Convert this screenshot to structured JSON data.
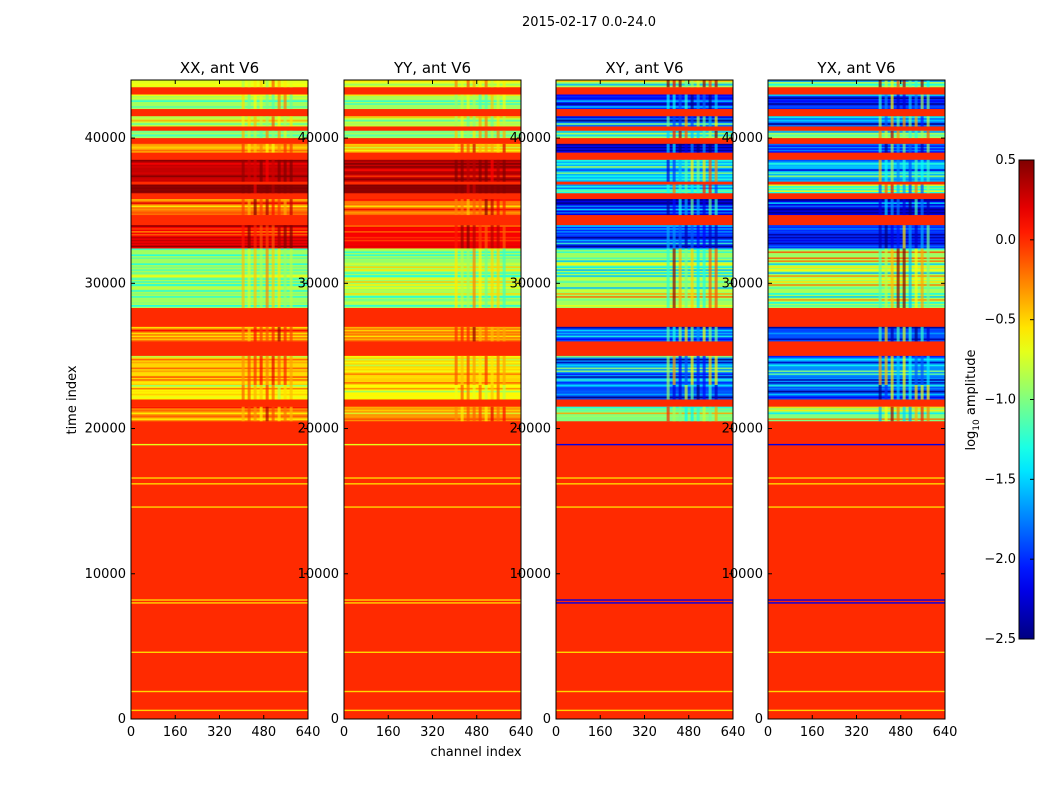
{
  "figure": {
    "suptitle": "2015-02-17 0.0-24.0"
  },
  "chart_data": {
    "type": "heatmap",
    "suptitle": "2015-02-17 0.0-24.0",
    "xlabel": "channel index",
    "ylabel": "time index",
    "xlim": [
      0,
      640
    ],
    "ylim": [
      0,
      44000
    ],
    "xticks": [
      0,
      160,
      320,
      480,
      640
    ],
    "yticks": [
      0,
      10000,
      20000,
      30000,
      40000
    ],
    "colorbar": {
      "label": "log10 amplitude",
      "label_base": "log",
      "label_sub": "10",
      "label_rest": " amplitude",
      "colormap": "jet",
      "range": [
        -2.5,
        0.5
      ],
      "ticks": [
        0.5,
        0.0,
        -0.5,
        -1.0,
        -1.5,
        -2.0,
        -2.5
      ],
      "tick_labels": [
        "0.5",
        "0.0",
        "−0.5",
        "−1.0",
        "−1.5",
        "−2.0",
        "−2.5"
      ]
    },
    "panels": [
      {
        "title": "XX, ant V6",
        "mode": "auto",
        "base": 0.0,
        "bands": [
          {
            "t": [
              43500,
              44000
            ],
            "v": -0.7
          },
          {
            "t": [
              42000,
              43000
            ],
            "v": -0.9
          },
          {
            "t": [
              40800,
              41500
            ],
            "v": -0.8
          },
          {
            "t": [
              40000,
              40500
            ],
            "v": -0.9
          },
          {
            "t": [
              39000,
              39600
            ],
            "v": -0.4
          },
          {
            "t": [
              37000,
              38500
            ],
            "v": 0.3
          },
          {
            "t": [
              36200,
              36800
            ],
            "v": 0.45
          },
          {
            "t": [
              34700,
              35800
            ],
            "v": -0.2
          },
          {
            "t": [
              32400,
              34000
            ],
            "v": 0.15
          },
          {
            "t": [
              28300,
              32400
            ],
            "v": -0.9
          },
          {
            "t": [
              26000,
              27000
            ],
            "v": -0.2
          },
          {
            "t": [
              23000,
              25000
            ],
            "v": -0.5
          },
          {
            "t": [
              22000,
              23000
            ],
            "v": -0.6
          },
          {
            "t": [
              20500,
              21500
            ],
            "v": -0.3
          }
        ],
        "lines": [
          {
            "t": 18900,
            "v": -0.7
          },
          {
            "t": 16600,
            "v": -0.5
          },
          {
            "t": 16200,
            "v": -0.5
          },
          {
            "t": 14600,
            "v": -0.5
          },
          {
            "t": 8200,
            "v": -0.5
          },
          {
            "t": 8000,
            "v": -0.5
          },
          {
            "t": 4600,
            "v": -0.5
          },
          {
            "t": 1900,
            "v": -0.5
          },
          {
            "t": 600,
            "v": -0.5
          }
        ]
      },
      {
        "title": "YY, ant V6",
        "mode": "auto",
        "base": 0.0,
        "bands": [
          {
            "t": [
              43500,
              44000
            ],
            "v": -0.7
          },
          {
            "t": [
              42000,
              43000
            ],
            "v": -0.9
          },
          {
            "t": [
              40800,
              41500
            ],
            "v": -0.8
          },
          {
            "t": [
              40000,
              40500
            ],
            "v": -0.9
          },
          {
            "t": [
              39000,
              39600
            ],
            "v": -0.4
          },
          {
            "t": [
              37000,
              38500
            ],
            "v": 0.3
          },
          {
            "t": [
              36200,
              36800
            ],
            "v": 0.45
          },
          {
            "t": [
              34700,
              35800
            ],
            "v": -0.2
          },
          {
            "t": [
              32400,
              34000
            ],
            "v": 0.15
          },
          {
            "t": [
              28300,
              32400
            ],
            "v": -0.9
          },
          {
            "t": [
              26000,
              27000
            ],
            "v": -0.2
          },
          {
            "t": [
              23000,
              25000
            ],
            "v": -0.5
          },
          {
            "t": [
              22000,
              23000
            ],
            "v": -0.6
          },
          {
            "t": [
              20500,
              21500
            ],
            "v": -0.3
          }
        ],
        "lines": [
          {
            "t": 18900,
            "v": -0.7
          },
          {
            "t": 16600,
            "v": -0.5
          },
          {
            "t": 16200,
            "v": -0.5
          },
          {
            "t": 14600,
            "v": -0.5
          },
          {
            "t": 8200,
            "v": -0.5
          },
          {
            "t": 8000,
            "v": -0.5
          },
          {
            "t": 4600,
            "v": -0.5
          },
          {
            "t": 1900,
            "v": -0.5
          },
          {
            "t": 600,
            "v": -0.5
          }
        ]
      },
      {
        "title": "XY, ant V6",
        "mode": "cross",
        "base": 0.0,
        "bands": [
          {
            "t": [
              43500,
              44000
            ],
            "v": -0.9
          },
          {
            "t": [
              42000,
              43000
            ],
            "v": -2.0
          },
          {
            "t": [
              40800,
              41500
            ],
            "v": -1.8
          },
          {
            "t": [
              40000,
              40500
            ],
            "v": -0.9
          },
          {
            "t": [
              39000,
              39600
            ],
            "v": -2.1
          },
          {
            "t": [
              37000,
              38500
            ],
            "v": -1.6
          },
          {
            "t": [
              36200,
              36800
            ],
            "v": -1.3
          },
          {
            "t": [
              34700,
              35800
            ],
            "v": -2.2
          },
          {
            "t": [
              32400,
              34000
            ],
            "v": -2.0
          },
          {
            "t": [
              28300,
              32400
            ],
            "v": -0.9
          },
          {
            "t": [
              26000,
              27000
            ],
            "v": -1.9
          },
          {
            "t": [
              23000,
              25000
            ],
            "v": -1.7
          },
          {
            "t": [
              22000,
              23000
            ],
            "v": -1.9
          },
          {
            "t": [
              20500,
              21500
            ],
            "v": -1.0
          }
        ],
        "lines": [
          {
            "t": 18900,
            "v": -2.2
          },
          {
            "t": 16600,
            "v": -0.5
          },
          {
            "t": 16200,
            "v": -0.5
          },
          {
            "t": 14600,
            "v": -0.5
          },
          {
            "t": 8200,
            "v": -2.2
          },
          {
            "t": 8000,
            "v": -2.2
          },
          {
            "t": 4600,
            "v": -0.5
          },
          {
            "t": 1900,
            "v": -0.5
          },
          {
            "t": 600,
            "v": -0.5
          }
        ]
      },
      {
        "title": "YX, ant V6",
        "mode": "cross",
        "base": 0.0,
        "bands": [
          {
            "t": [
              43500,
              44000
            ],
            "v": -0.9
          },
          {
            "t": [
              42000,
              43000
            ],
            "v": -2.0
          },
          {
            "t": [
              40800,
              41500
            ],
            "v": -1.8
          },
          {
            "t": [
              40000,
              40500
            ],
            "v": -0.9
          },
          {
            "t": [
              39000,
              39600
            ],
            "v": -2.1
          },
          {
            "t": [
              37000,
              38500
            ],
            "v": -1.6
          },
          {
            "t": [
              36200,
              36800
            ],
            "v": -1.3
          },
          {
            "t": [
              34700,
              35800
            ],
            "v": -2.2
          },
          {
            "t": [
              32400,
              34000
            ],
            "v": -2.0
          },
          {
            "t": [
              28300,
              32400
            ],
            "v": -0.9
          },
          {
            "t": [
              26000,
              27000
            ],
            "v": -1.9
          },
          {
            "t": [
              23000,
              25000
            ],
            "v": -1.7
          },
          {
            "t": [
              22000,
              23000
            ],
            "v": -1.9
          },
          {
            "t": [
              20500,
              21500
            ],
            "v": -1.0
          }
        ],
        "lines": [
          {
            "t": 18900,
            "v": -2.2
          },
          {
            "t": 16600,
            "v": -0.5
          },
          {
            "t": 16200,
            "v": -0.5
          },
          {
            "t": 14600,
            "v": -0.5
          },
          {
            "t": 8200,
            "v": -2.2
          },
          {
            "t": 8000,
            "v": -2.2
          },
          {
            "t": 4600,
            "v": -0.5
          },
          {
            "t": 1900,
            "v": -0.5
          },
          {
            "t": 600,
            "v": -0.5
          }
        ]
      }
    ]
  }
}
